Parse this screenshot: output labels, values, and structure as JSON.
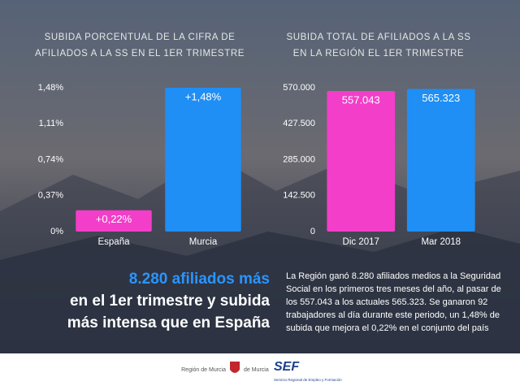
{
  "chart_data": [
    {
      "type": "bar",
      "title": [
        "SUBIDA PORCENTUAL DE LA CIFRA DE",
        "AFILIADOS A LA SS EN EL 1ER TRIMESTRE"
      ],
      "categories": [
        "España",
        "Murcia"
      ],
      "values": [
        0.22,
        1.48
      ],
      "value_labels": [
        "+0,22%",
        "+1,48%"
      ],
      "colors": [
        "#f23ec9",
        "#1f8ef5"
      ],
      "ylim": [
        0,
        1.48
      ],
      "yticks": [
        {
          "value": 0,
          "label": "0%"
        },
        {
          "value": 0.37,
          "label": "0,37%"
        },
        {
          "value": 0.74,
          "label": "0,74%"
        },
        {
          "value": 1.11,
          "label": "1,11%"
        },
        {
          "value": 1.48,
          "label": "1,48%"
        }
      ]
    },
    {
      "type": "bar",
      "title": [
        "SUBIDA TOTAL DE AFILIADOS A LA SS",
        "EN LA REGIÓN EL 1ER TRIMESTRE"
      ],
      "categories": [
        "Dic 2017",
        "Mar 2018"
      ],
      "values": [
        557043,
        565323
      ],
      "value_labels": [
        "557.043",
        "565.323"
      ],
      "colors": [
        "#f23ec9",
        "#1f8ef5"
      ],
      "ylim": [
        0,
        570000
      ],
      "yticks": [
        0,
        {
          "value": 142500,
          "label": "142.500"
        },
        {
          "value": 285000,
          "label": "285.000"
        },
        {
          "value": 427500,
          "label": "427.500"
        },
        {
          "value": 570000,
          "label": "570.000"
        }
      ]
    }
  ],
  "headline": [
    "8.280 afiliados más",
    "en el 1er trimestre y subida",
    "más intensa que en España"
  ],
  "body": "La Región ganó 8.280 afiliados medios a la Seguridad Social en los primeros tres meses del año, al pasar de los 557.043 a los actuales 565.323. Se ganaron 92 trabajadores al día durante este periodo, un 1,48% de subida que mejora el 0,22% en el conjunto del país",
  "footer": {
    "region": "Región de Murcia",
    "sef": "SEF",
    "sef_name": "Servicio Regional de Empleo y Formación"
  }
}
